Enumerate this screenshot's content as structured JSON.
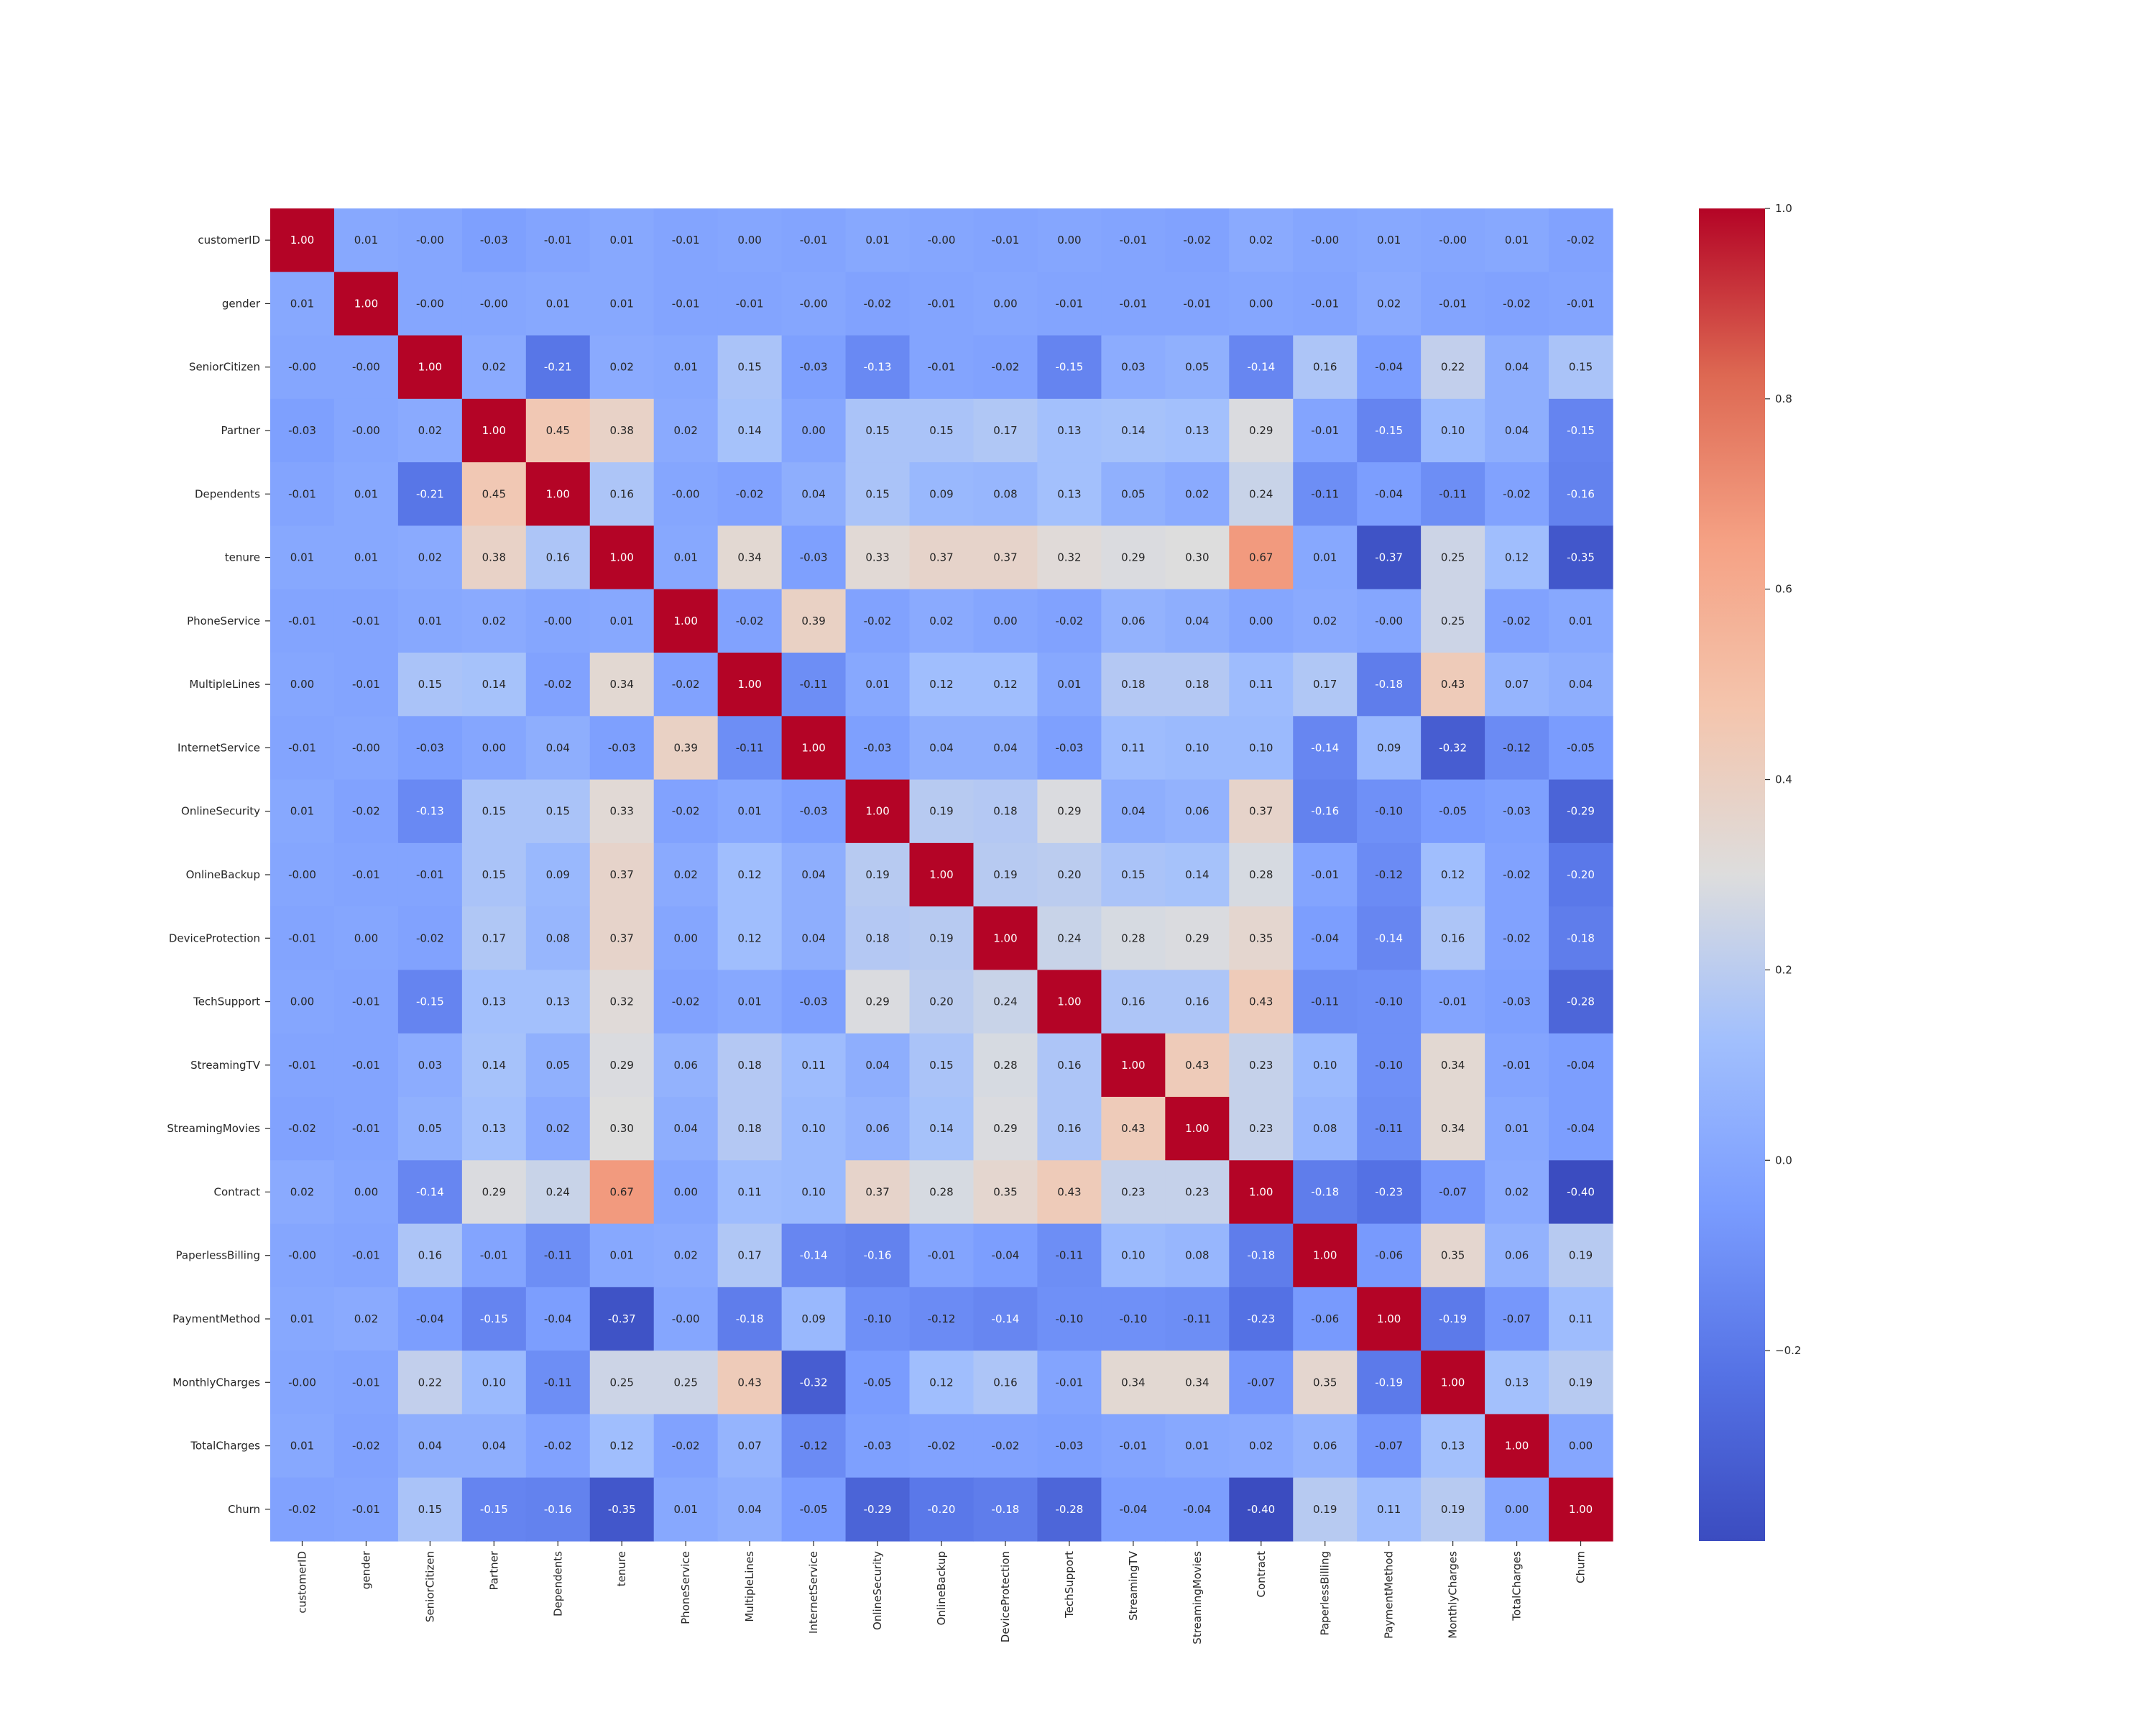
{
  "chart_data": {
    "type": "heatmap",
    "title": "",
    "xlabel": "",
    "ylabel": "",
    "colormap": "coolwarm",
    "colors": {
      "low": "#3b4cc0",
      "mid": "#dddddd",
      "high": "#b40426",
      "cell_text_dark": "#262626",
      "cell_text_light": "#ffffff"
    },
    "categories": [
      "customerID",
      "gender",
      "SeniorCitizen",
      "Partner",
      "Dependents",
      "tenure",
      "PhoneService",
      "MultipleLines",
      "InternetService",
      "OnlineSecurity",
      "OnlineBackup",
      "DeviceProtection",
      "TechSupport",
      "StreamingTV",
      "StreamingMovies",
      "Contract",
      "PaperlessBilling",
      "PaymentMethod",
      "MonthlyCharges",
      "TotalCharges",
      "Churn"
    ],
    "values": [
      [
        1.0,
        0.01,
        -0.0,
        -0.03,
        -0.01,
        0.01,
        -0.01,
        0.0,
        -0.01,
        0.01,
        -0.0,
        -0.01,
        0.0,
        -0.01,
        -0.02,
        0.02,
        -0.0,
        0.01,
        -0.0,
        0.01,
        -0.02
      ],
      [
        0.01,
        1.0,
        -0.0,
        -0.0,
        0.01,
        0.01,
        -0.01,
        -0.01,
        -0.0,
        -0.02,
        -0.01,
        0.0,
        -0.01,
        -0.01,
        -0.01,
        0.0,
        -0.01,
        0.02,
        -0.01,
        -0.02,
        -0.01
      ],
      [
        -0.0,
        -0.0,
        1.0,
        0.02,
        -0.21,
        0.02,
        0.01,
        0.15,
        -0.03,
        -0.13,
        -0.01,
        -0.02,
        -0.15,
        0.03,
        0.05,
        -0.14,
        0.16,
        -0.04,
        0.22,
        0.04,
        0.15
      ],
      [
        -0.03,
        -0.0,
        0.02,
        1.0,
        0.45,
        0.38,
        0.02,
        0.14,
        0.0,
        0.15,
        0.15,
        0.17,
        0.13,
        0.14,
        0.13,
        0.29,
        -0.01,
        -0.15,
        0.1,
        0.04,
        -0.15
      ],
      [
        -0.01,
        0.01,
        -0.21,
        0.45,
        1.0,
        0.16,
        -0.0,
        -0.02,
        0.04,
        0.15,
        0.09,
        0.08,
        0.13,
        0.05,
        0.02,
        0.24,
        -0.11,
        -0.04,
        -0.11,
        -0.02,
        -0.16
      ],
      [
        0.01,
        0.01,
        0.02,
        0.38,
        0.16,
        1.0,
        0.01,
        0.34,
        -0.03,
        0.33,
        0.37,
        0.37,
        0.32,
        0.29,
        0.3,
        0.67,
        0.01,
        -0.37,
        0.25,
        0.12,
        -0.35
      ],
      [
        -0.01,
        -0.01,
        0.01,
        0.02,
        -0.0,
        0.01,
        1.0,
        -0.02,
        0.39,
        -0.02,
        0.02,
        0.0,
        -0.02,
        0.06,
        0.04,
        0.0,
        0.02,
        -0.0,
        0.25,
        -0.02,
        0.01
      ],
      [
        0.0,
        -0.01,
        0.15,
        0.14,
        -0.02,
        0.34,
        -0.02,
        1.0,
        -0.11,
        0.01,
        0.12,
        0.12,
        0.01,
        0.18,
        0.18,
        0.11,
        0.17,
        -0.18,
        0.43,
        0.07,
        0.04
      ],
      [
        -0.01,
        -0.0,
        -0.03,
        0.0,
        0.04,
        -0.03,
        0.39,
        -0.11,
        1.0,
        -0.03,
        0.04,
        0.04,
        -0.03,
        0.11,
        0.1,
        0.1,
        -0.14,
        0.09,
        -0.32,
        -0.12,
        -0.05
      ],
      [
        0.01,
        -0.02,
        -0.13,
        0.15,
        0.15,
        0.33,
        -0.02,
        0.01,
        -0.03,
        1.0,
        0.19,
        0.18,
        0.29,
        0.04,
        0.06,
        0.37,
        -0.16,
        -0.1,
        -0.05,
        -0.03,
        -0.29
      ],
      [
        -0.0,
        -0.01,
        -0.01,
        0.15,
        0.09,
        0.37,
        0.02,
        0.12,
        0.04,
        0.19,
        1.0,
        0.19,
        0.2,
        0.15,
        0.14,
        0.28,
        -0.01,
        -0.12,
        0.12,
        -0.02,
        -0.2
      ],
      [
        -0.01,
        0.0,
        -0.02,
        0.17,
        0.08,
        0.37,
        0.0,
        0.12,
        0.04,
        0.18,
        0.19,
        1.0,
        0.24,
        0.28,
        0.29,
        0.35,
        -0.04,
        -0.14,
        0.16,
        -0.02,
        -0.18
      ],
      [
        0.0,
        -0.01,
        -0.15,
        0.13,
        0.13,
        0.32,
        -0.02,
        0.01,
        -0.03,
        0.29,
        0.2,
        0.24,
        1.0,
        0.16,
        0.16,
        0.43,
        -0.11,
        -0.1,
        -0.01,
        -0.03,
        -0.28
      ],
      [
        -0.01,
        -0.01,
        0.03,
        0.14,
        0.05,
        0.29,
        0.06,
        0.18,
        0.11,
        0.04,
        0.15,
        0.28,
        0.16,
        1.0,
        0.43,
        0.23,
        0.1,
        -0.1,
        0.34,
        -0.01,
        -0.04
      ],
      [
        -0.02,
        -0.01,
        0.05,
        0.13,
        0.02,
        0.3,
        0.04,
        0.18,
        0.1,
        0.06,
        0.14,
        0.29,
        0.16,
        0.43,
        1.0,
        0.23,
        0.08,
        -0.11,
        0.34,
        0.01,
        -0.04
      ],
      [
        0.02,
        0.0,
        -0.14,
        0.29,
        0.24,
        0.67,
        0.0,
        0.11,
        0.1,
        0.37,
        0.28,
        0.35,
        0.43,
        0.23,
        0.23,
        1.0,
        -0.18,
        -0.23,
        -0.07,
        0.02,
        -0.4
      ],
      [
        -0.0,
        -0.01,
        0.16,
        -0.01,
        -0.11,
        0.01,
        0.02,
        0.17,
        -0.14,
        -0.16,
        -0.01,
        -0.04,
        -0.11,
        0.1,
        0.08,
        -0.18,
        1.0,
        -0.06,
        0.35,
        0.06,
        0.19
      ],
      [
        0.01,
        0.02,
        -0.04,
        -0.15,
        -0.04,
        -0.37,
        -0.0,
        -0.18,
        0.09,
        -0.1,
        -0.12,
        -0.14,
        -0.1,
        -0.1,
        -0.11,
        -0.23,
        -0.06,
        1.0,
        -0.19,
        -0.07,
        0.11
      ],
      [
        -0.0,
        -0.01,
        0.22,
        0.1,
        -0.11,
        0.25,
        0.25,
        0.43,
        -0.32,
        -0.05,
        0.12,
        0.16,
        -0.01,
        0.34,
        0.34,
        -0.07,
        0.35,
        -0.19,
        1.0,
        0.13,
        0.19
      ],
      [
        0.01,
        -0.02,
        0.04,
        0.04,
        -0.02,
        0.12,
        -0.02,
        0.07,
        -0.12,
        -0.03,
        -0.02,
        -0.02,
        -0.03,
        -0.01,
        0.01,
        0.02,
        0.06,
        -0.07,
        0.13,
        1.0,
        0.0
      ],
      [
        -0.02,
        -0.01,
        0.15,
        -0.15,
        -0.16,
        -0.35,
        0.01,
        0.04,
        -0.05,
        -0.29,
        -0.2,
        -0.18,
        -0.28,
        -0.04,
        -0.04,
        -0.4,
        0.19,
        0.11,
        0.19,
        0.0,
        1.0
      ]
    ],
    "colorbar": {
      "vmin": -0.4,
      "vmax": 1.0,
      "ticks": [
        -0.2,
        0.0,
        0.2,
        0.4,
        0.6,
        0.8,
        1.0
      ],
      "tick_labels": [
        "−0.2",
        "0.0",
        "0.2",
        "0.4",
        "0.6",
        "0.8",
        "1.0"
      ]
    },
    "grid": false,
    "legend": "colorbar-right"
  }
}
